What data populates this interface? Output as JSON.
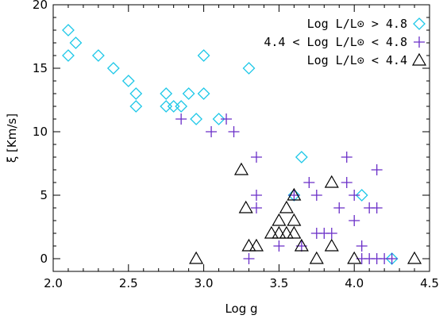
{
  "chart_data": {
    "type": "scatter",
    "xlabel": "Log g",
    "ylabel": "ξ [Km/s]",
    "xlim": [
      2.0,
      4.5
    ],
    "ylim": [
      -1,
      20
    ],
    "xticks": [
      2.0,
      2.5,
      3.0,
      3.5,
      4.0,
      4.5
    ],
    "xtick_labels": [
      "2.0",
      "2.5",
      "3.0",
      "3.5",
      "4.0",
      "4.5"
    ],
    "yticks": [
      0,
      5,
      10,
      15,
      20
    ],
    "ytick_labels": [
      "0",
      "5",
      "10",
      "15",
      "20"
    ],
    "legend_position": "top-right",
    "series": [
      {
        "legend_label": "Log L/L⊙ > 4.8",
        "marker": "diamond",
        "color": "#1fc8e8",
        "points": [
          [
            2.1,
            18
          ],
          [
            2.1,
            16
          ],
          [
            2.15,
            17
          ],
          [
            2.3,
            16
          ],
          [
            2.4,
            15
          ],
          [
            2.5,
            14
          ],
          [
            2.55,
            13
          ],
          [
            2.55,
            12
          ],
          [
            2.75,
            13
          ],
          [
            2.75,
            12
          ],
          [
            2.8,
            12
          ],
          [
            2.85,
            12
          ],
          [
            2.9,
            13
          ],
          [
            2.95,
            11
          ],
          [
            3.0,
            13
          ],
          [
            3.0,
            16
          ],
          [
            3.1,
            11
          ],
          [
            3.3,
            15
          ],
          [
            3.6,
            5
          ],
          [
            3.65,
            8
          ],
          [
            4.05,
            5
          ],
          [
            4.25,
            0
          ]
        ]
      },
      {
        "legend_label": "4.4 < Log L/L⊙ < 4.8",
        "marker": "plus",
        "color": "#6a2fc8",
        "points": [
          [
            2.85,
            11
          ],
          [
            3.05,
            10
          ],
          [
            3.15,
            11
          ],
          [
            3.2,
            10
          ],
          [
            3.3,
            0
          ],
          [
            3.35,
            8
          ],
          [
            3.35,
            5
          ],
          [
            3.35,
            4
          ],
          [
            3.5,
            1
          ],
          [
            3.6,
            5
          ],
          [
            3.65,
            1
          ],
          [
            3.7,
            6
          ],
          [
            3.75,
            5
          ],
          [
            3.75,
            2
          ],
          [
            3.8,
            2
          ],
          [
            3.85,
            2
          ],
          [
            3.9,
            4
          ],
          [
            3.95,
            8
          ],
          [
            3.95,
            6
          ],
          [
            4.0,
            5
          ],
          [
            4.0,
            3
          ],
          [
            4.05,
            1
          ],
          [
            4.05,
            0
          ],
          [
            4.1,
            0
          ],
          [
            4.1,
            4
          ],
          [
            4.15,
            7
          ],
          [
            4.15,
            4
          ],
          [
            4.15,
            0
          ],
          [
            4.2,
            0
          ],
          [
            4.25,
            0
          ]
        ]
      },
      {
        "legend_label": "Log L/L⊙ < 4.4",
        "marker": "triangle",
        "color": "#000000",
        "points": [
          [
            2.95,
            0
          ],
          [
            3.25,
            7
          ],
          [
            3.28,
            4
          ],
          [
            3.3,
            1
          ],
          [
            3.35,
            1
          ],
          [
            3.45,
            2
          ],
          [
            3.5,
            2
          ],
          [
            3.5,
            3
          ],
          [
            3.55,
            2
          ],
          [
            3.55,
            4
          ],
          [
            3.6,
            5
          ],
          [
            3.6,
            3
          ],
          [
            3.6,
            2
          ],
          [
            3.65,
            1
          ],
          [
            3.75,
            0
          ],
          [
            3.85,
            6
          ],
          [
            3.85,
            1
          ],
          [
            4.0,
            0
          ],
          [
            4.4,
            0
          ]
        ]
      }
    ]
  }
}
